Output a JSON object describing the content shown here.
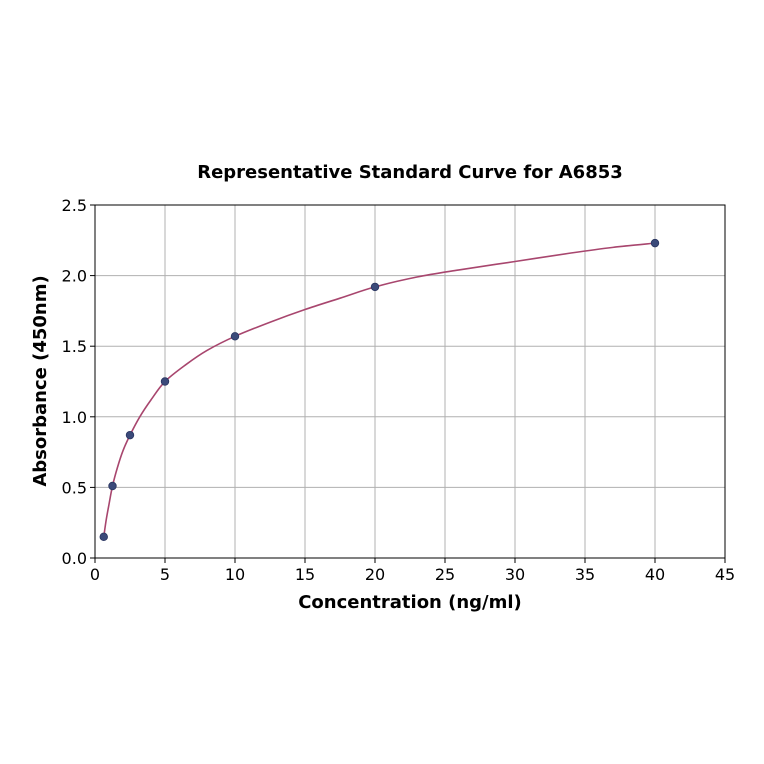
{
  "chart_data": {
    "type": "scatter",
    "title": "Representative Standard Curve for A6853",
    "xlabel": "Concentration (ng/ml)",
    "ylabel": "Absorbance (450nm)",
    "xlim": [
      0,
      45
    ],
    "ylim": [
      0,
      2.5
    ],
    "xticks": [
      0,
      5,
      10,
      15,
      20,
      25,
      30,
      35,
      40,
      45
    ],
    "yticks": [
      0.0,
      0.5,
      1.0,
      1.5,
      2.0,
      2.5
    ],
    "xtick_labels": [
      "0",
      "5",
      "10",
      "15",
      "20",
      "25",
      "30",
      "35",
      "40",
      "45"
    ],
    "ytick_labels": [
      "0.0",
      "0.5",
      "1.0",
      "1.5",
      "2.0",
      "2.5"
    ],
    "grid": true,
    "legend": "none",
    "series": [
      {
        "marker_color": "#3b4a7a",
        "points": [
          {
            "x": 0.625,
            "y": 0.15
          },
          {
            "x": 1.25,
            "y": 0.51
          },
          {
            "x": 2.5,
            "y": 0.87
          },
          {
            "x": 5,
            "y": 1.25
          },
          {
            "x": 10,
            "y": 1.57
          },
          {
            "x": 20,
            "y": 1.92
          },
          {
            "x": 40,
            "y": 2.23
          }
        ]
      }
    ],
    "fit_curve": {
      "color": "#a8466e",
      "x": [
        0.625,
        0.8,
        1.0,
        1.25,
        1.6,
        2.0,
        2.5,
        3.2,
        4.0,
        5.0,
        6.5,
        8.0,
        10.0,
        12.5,
        15.0,
        17.5,
        20.0,
        23.0,
        26.0,
        30.0,
        34.0,
        37.0,
        40.0
      ],
      "y": [
        0.15,
        0.27,
        0.38,
        0.51,
        0.64,
        0.76,
        0.87,
        1.0,
        1.12,
        1.25,
        1.37,
        1.47,
        1.57,
        1.67,
        1.76,
        1.84,
        1.92,
        1.99,
        2.04,
        2.1,
        2.16,
        2.2,
        2.23
      ]
    }
  }
}
